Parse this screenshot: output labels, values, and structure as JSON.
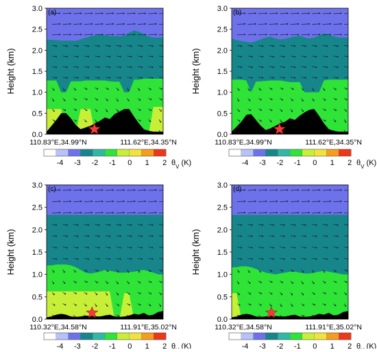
{
  "chart_data": [
    {
      "type": "heatmap",
      "panel_label": "(a)",
      "ylabel": "Height (km)",
      "y_ticks": [
        "3.0",
        "2.5",
        "2.0",
        "1.5",
        "1.0",
        "0.5",
        "0.0"
      ],
      "ylim": [
        0,
        3.0
      ],
      "x_start_label": "110.83°E,34.99°N",
      "x_end_label": "111.62°E,34.35°N",
      "variable": "θv",
      "unit": "(K)",
      "layers": [
        {
          "level": -3,
          "top": [
            3.0,
            3.0,
            3.0,
            3.0,
            3.0,
            3.0,
            3.0,
            3.0,
            3.0,
            3.0,
            3.0,
            3.0,
            3.0,
            3.0,
            3.0,
            3.0,
            3.0,
            3.0,
            3.0,
            3.0,
            3.0,
            3.0,
            3.0,
            3.0,
            3.0
          ]
        },
        {
          "level": -2,
          "top": [
            2.25,
            2.25,
            2.24,
            2.23,
            2.23,
            2.23,
            2.22,
            2.26,
            2.3,
            2.33,
            2.35,
            2.38,
            2.36,
            2.34,
            2.34,
            2.33,
            2.35,
            2.42,
            2.47,
            2.44,
            2.38,
            2.33,
            2.3,
            2.3,
            2.3
          ]
        },
        {
          "level": -1,
          "top": [
            1.28,
            1.28,
            1.28,
            1.0,
            1.0,
            1.26,
            1.26,
            1.26,
            1.28,
            1.28,
            1.28,
            1.28,
            1.28,
            1.26,
            1.25,
            1.25,
            1.0,
            1.0,
            1.3,
            1.3,
            1.32,
            1.32,
            1.32,
            1.32,
            1.32
          ]
        },
        {
          "level": 0,
          "top": [
            0.6,
            0.6,
            0.6,
            0.6,
            0.0,
            0.0,
            0.0,
            0.6,
            0.6,
            0.6,
            0.0,
            0.0,
            0.0,
            0.0,
            0.0,
            0.0,
            0.0,
            0.0,
            0.0,
            0.0,
            0.0,
            0.0,
            0.65,
            0.65,
            0.65
          ]
        }
      ],
      "terrain": [
        0.06,
        0.2,
        0.34,
        0.5,
        0.5,
        0.38,
        0.22,
        0.12,
        0.16,
        0.2,
        0.26,
        0.32,
        0.4,
        0.36,
        0.48,
        0.54,
        0.6,
        0.6,
        0.42,
        0.26,
        0.12,
        0.08,
        0.06,
        0.06,
        0.06
      ],
      "star_x": 0.41,
      "star_y": 0.12
    },
    {
      "type": "heatmap",
      "panel_label": "(b)",
      "ylabel": "Height (km)",
      "y_ticks": [
        "3.0",
        "2.5",
        "2.0",
        "1.5",
        "1.0",
        "0.5",
        "0.0"
      ],
      "ylim": [
        0,
        3.0
      ],
      "x_start_label": "110.83°E,34.99°N",
      "x_end_label": "111.62°E,34.35°N",
      "variable": "θv",
      "unit": "(K)",
      "layers": [
        {
          "level": -3,
          "top": [
            3.0,
            3.0,
            3.0,
            3.0,
            3.0,
            3.0,
            3.0,
            3.0,
            3.0,
            3.0,
            3.0,
            3.0,
            3.0,
            3.0,
            3.0,
            3.0,
            3.0,
            3.0,
            3.0,
            3.0,
            3.0,
            3.0,
            3.0,
            3.0,
            3.0
          ]
        },
        {
          "level": -2,
          "top": [
            2.28,
            2.24,
            2.22,
            2.2,
            2.18,
            2.22,
            2.26,
            2.3,
            2.32,
            2.28,
            2.26,
            2.27,
            2.3,
            2.33,
            2.35,
            2.3,
            2.28,
            2.3,
            2.35,
            2.4,
            2.37,
            2.33,
            2.3,
            2.3,
            2.3
          ]
        },
        {
          "level": -1,
          "top": [
            1.3,
            1.3,
            1.3,
            1.28,
            1.0,
            1.25,
            1.26,
            1.27,
            1.28,
            1.28,
            1.28,
            1.26,
            1.24,
            1.24,
            1.24,
            1.0,
            1.0,
            1.0,
            1.0,
            1.28,
            1.3,
            1.3,
            1.3,
            1.3,
            1.3
          ]
        },
        {
          "level": 0,
          "top": [
            0.0,
            0.0,
            0.0,
            0.0,
            0.0,
            0.0,
            0.0,
            0.0,
            0.0,
            0.0,
            0.0,
            0.0,
            0.0,
            0.0,
            0.0,
            0.0,
            0.0,
            0.0,
            0.0,
            0.0,
            0.0,
            0.0,
            0.0,
            0.0,
            0.0
          ]
        }
      ],
      "terrain": [
        0.06,
        0.18,
        0.3,
        0.46,
        0.48,
        0.34,
        0.2,
        0.1,
        0.14,
        0.2,
        0.26,
        0.3,
        0.38,
        0.34,
        0.44,
        0.52,
        0.58,
        0.6,
        0.44,
        0.26,
        0.12,
        0.08,
        0.06,
        0.06,
        0.06
      ],
      "star_x": 0.41,
      "star_y": 0.12
    },
    {
      "type": "heatmap",
      "panel_label": "(c)",
      "ylabel": "Height (km)",
      "y_ticks": [
        "3.0",
        "2.5",
        "2.0",
        "1.5",
        "1.0",
        "0.5",
        "0.0"
      ],
      "ylim": [
        0,
        3.0
      ],
      "x_start_label": "110.32°E,34.58°N",
      "x_end_label": "111.91°E,35.02°N",
      "variable": "θv",
      "unit": "(K)",
      "layers": [
        {
          "level": -3,
          "top": [
            3.0,
            3.0,
            3.0,
            3.0,
            3.0,
            3.0,
            3.0,
            3.0,
            3.0,
            3.0,
            3.0,
            3.0,
            3.0,
            3.0,
            3.0,
            3.0,
            3.0,
            3.0,
            3.0,
            3.0,
            3.0,
            3.0,
            3.0,
            3.0,
            3.0
          ]
        },
        {
          "level": -2,
          "top": [
            2.33,
            2.33,
            2.33,
            2.33,
            2.33,
            2.33,
            2.33,
            2.33,
            2.33,
            2.33,
            2.33,
            2.33,
            2.33,
            2.33,
            2.33,
            2.33,
            2.33,
            2.33,
            2.33,
            2.33,
            2.33,
            2.33,
            2.33,
            2.33,
            2.33
          ]
        },
        {
          "level": -1,
          "top": [
            1.2,
            1.2,
            1.22,
            1.22,
            1.22,
            1.2,
            1.16,
            1.1,
            1.04,
            1.02,
            1.04,
            1.06,
            1.1,
            1.08,
            1.06,
            1.04,
            1.04,
            1.05,
            1.06,
            1.08,
            1.1,
            1.07,
            1.04,
            1.0,
            1.0
          ]
        },
        {
          "level": 0,
          "top": [
            0.62,
            0.62,
            0.62,
            0.62,
            0.62,
            0.62,
            0.62,
            0.62,
            0.62,
            0.62,
            0.62,
            0.62,
            0.62,
            0.62,
            0.0,
            0.0,
            0.58,
            0.58,
            0.0,
            0.0,
            0.0,
            0.0,
            0.0,
            0.0,
            0.0
          ]
        }
      ],
      "terrain": [
        0.04,
        0.06,
        0.1,
        0.12,
        0.1,
        0.06,
        0.05,
        0.06,
        0.08,
        0.07,
        0.06,
        0.06,
        0.08,
        0.1,
        0.06,
        0.05,
        0.06,
        0.08,
        0.12,
        0.1,
        0.14,
        0.08,
        0.1,
        0.16,
        0.18
      ],
      "star_x": 0.39,
      "star_y": 0.14
    },
    {
      "type": "heatmap",
      "panel_label": "(d)",
      "ylabel": "Height (km)",
      "y_ticks": [
        "3.0",
        "2.5",
        "2.0",
        "1.5",
        "1.0",
        "0.5",
        "0.0"
      ],
      "ylim": [
        0,
        3.0
      ],
      "x_start_label": "110.32°E,34.58°N",
      "x_end_label": "111.91°E,35.02°N",
      "variable": "θv",
      "unit": "(K)",
      "layers": [
        {
          "level": -3,
          "top": [
            3.0,
            3.0,
            3.0,
            3.0,
            3.0,
            3.0,
            3.0,
            3.0,
            3.0,
            3.0,
            3.0,
            3.0,
            3.0,
            3.0,
            3.0,
            3.0,
            3.0,
            3.0,
            3.0,
            3.0,
            3.0,
            3.0,
            3.0,
            3.0,
            3.0
          ]
        },
        {
          "level": -2,
          "top": [
            2.33,
            2.33,
            2.33,
            2.33,
            2.33,
            2.33,
            2.33,
            2.33,
            2.33,
            2.33,
            2.33,
            2.33,
            2.33,
            2.33,
            2.33,
            2.33,
            2.33,
            2.33,
            2.33,
            2.33,
            2.33,
            2.33,
            2.33,
            2.33,
            2.33
          ]
        },
        {
          "level": -1,
          "top": [
            1.16,
            1.16,
            1.18,
            1.18,
            1.16,
            1.12,
            1.08,
            1.04,
            1.02,
            1.0,
            1.02,
            1.04,
            1.06,
            1.06,
            1.04,
            1.02,
            1.02,
            1.04,
            1.06,
            1.08,
            1.06,
            1.04,
            1.02,
            1.0,
            1.0
          ]
        },
        {
          "level": 0,
          "top": [
            0.58,
            0.58,
            0.0,
            0.0,
            0.0,
            0.0,
            0.0,
            0.0,
            0.0,
            0.0,
            0.0,
            0.0,
            0.0,
            0.0,
            0.0,
            0.0,
            0.0,
            0.0,
            0.0,
            0.0,
            0.0,
            0.0,
            0.0,
            0.0,
            0.0
          ]
        }
      ],
      "terrain": [
        0.04,
        0.06,
        0.1,
        0.12,
        0.1,
        0.06,
        0.05,
        0.06,
        0.08,
        0.07,
        0.06,
        0.06,
        0.08,
        0.1,
        0.06,
        0.05,
        0.06,
        0.08,
        0.12,
        0.1,
        0.14,
        0.08,
        0.1,
        0.16,
        0.18
      ],
      "star_x": 0.34,
      "star_y": 0.14
    }
  ],
  "colorbar": {
    "tick_labels": [
      "-4",
      "-3",
      "-2",
      "-1",
      "0",
      "1",
      "2"
    ],
    "tick_values": [
      -4,
      -3,
      -2,
      -1,
      0,
      1,
      2
    ],
    "colors": [
      "#ffffff",
      "#b7c3f8",
      "#6e72ea",
      "#16868a",
      "#2fb9a4",
      "#2fe337",
      "#c8ef37",
      "#f1e33c",
      "#f59d1e",
      "#f03618"
    ],
    "label": "θv (K)"
  },
  "level_colors": {
    "-3": "#6e72ea",
    "-2": "#16868a",
    "-1": "#2fe337",
    "0": "#c8ef37"
  },
  "terrain_color": "#000000",
  "star_color": "#ef3c3c"
}
